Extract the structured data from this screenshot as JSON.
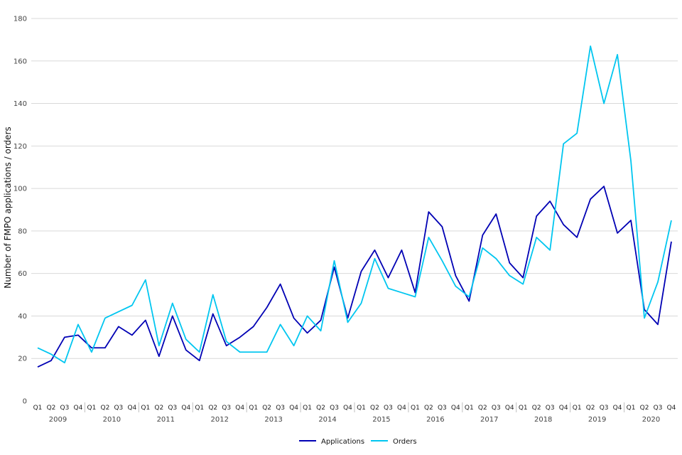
{
  "chart_data": {
    "type": "line",
    "title": "",
    "xlabel": "",
    "ylabel": "Number of FMPO applications / orders",
    "ylim": [
      0,
      180
    ],
    "yticks": [
      0,
      20,
      40,
      60,
      80,
      100,
      120,
      140,
      160,
      180
    ],
    "grid": true,
    "legend_position": "bottom-center",
    "years": [
      "2009",
      "2010",
      "2011",
      "2012",
      "2013",
      "2014",
      "2015",
      "2016",
      "2017",
      "2018",
      "2019",
      "2020"
    ],
    "quarter_labels": [
      "Q1",
      "Q2",
      "Q3",
      "Q4"
    ],
    "series": [
      {
        "name": "Applications",
        "color": "#0000b4",
        "values": [
          16,
          19,
          30,
          31,
          25,
          25,
          35,
          31,
          38,
          21,
          40,
          24,
          19,
          41,
          26,
          30,
          35,
          44,
          55,
          39,
          32,
          38,
          63,
          39,
          61,
          71,
          58,
          71,
          51,
          89,
          82,
          59,
          47,
          78,
          88,
          65,
          58,
          87,
          94,
          83,
          77,
          95,
          101,
          79,
          85,
          43,
          36,
          75
        ]
      },
      {
        "name": "Orders",
        "color": "#00c6f0",
        "values": [
          25,
          22,
          18,
          36,
          23,
          39,
          42,
          45,
          57,
          26,
          46,
          29,
          23,
          50,
          28,
          23,
          23,
          23,
          36,
          26,
          40,
          33,
          66,
          37,
          46,
          67,
          53,
          51,
          49,
          77,
          66,
          54,
          49,
          72,
          67,
          59,
          55,
          77,
          71,
          121,
          126,
          167,
          140,
          163,
          113,
          39,
          56,
          85
        ]
      }
    ]
  }
}
